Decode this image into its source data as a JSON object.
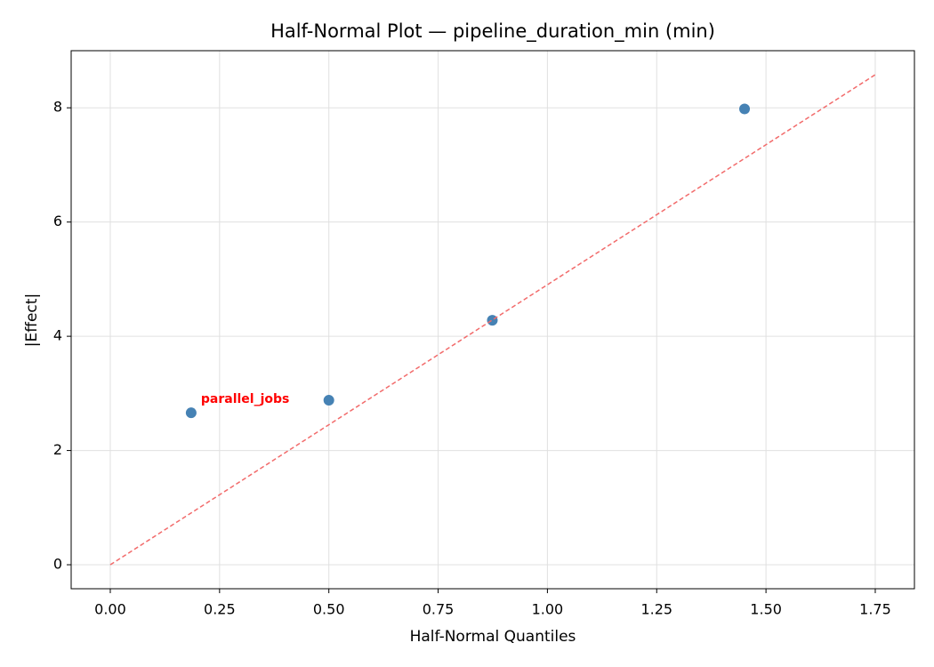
{
  "chart_data": {
    "type": "scatter",
    "title": "Half-Normal Plot — pipeline_duration_min (min)",
    "xlabel": "Half-Normal Quantiles",
    "ylabel": "|Effect|",
    "annotation": "parallel_jobs",
    "annotation_color": "#ff0000",
    "series": [
      {
        "type": "scatter",
        "color": "#4682b4",
        "x": [
          0.185,
          0.5,
          0.874,
          1.451
        ],
        "values": [
          2.66,
          2.88,
          4.28,
          7.98
        ]
      },
      {
        "type": "line",
        "style": "dashed",
        "color": "#f26b6b",
        "x": [
          0,
          1.75
        ],
        "values": [
          0,
          8.58
        ]
      }
    ],
    "xlim": [
      -0.0895,
      1.8396
    ],
    "ylim": [
      -0.42,
      9.0
    ],
    "xticks": [
      {
        "value": 0,
        "label": "0.00"
      },
      {
        "value": 0.25,
        "label": "0.25"
      },
      {
        "value": 0.5,
        "label": "0.50"
      },
      {
        "value": 0.75,
        "label": "0.75"
      },
      {
        "value": 1,
        "label": "1.00"
      },
      {
        "value": 1.25,
        "label": "1.25"
      },
      {
        "value": 1.5,
        "label": "1.50"
      },
      {
        "value": 1.75,
        "label": "1.75"
      }
    ],
    "yticks": [
      0,
      2,
      4,
      6,
      8
    ],
    "grid": true
  }
}
